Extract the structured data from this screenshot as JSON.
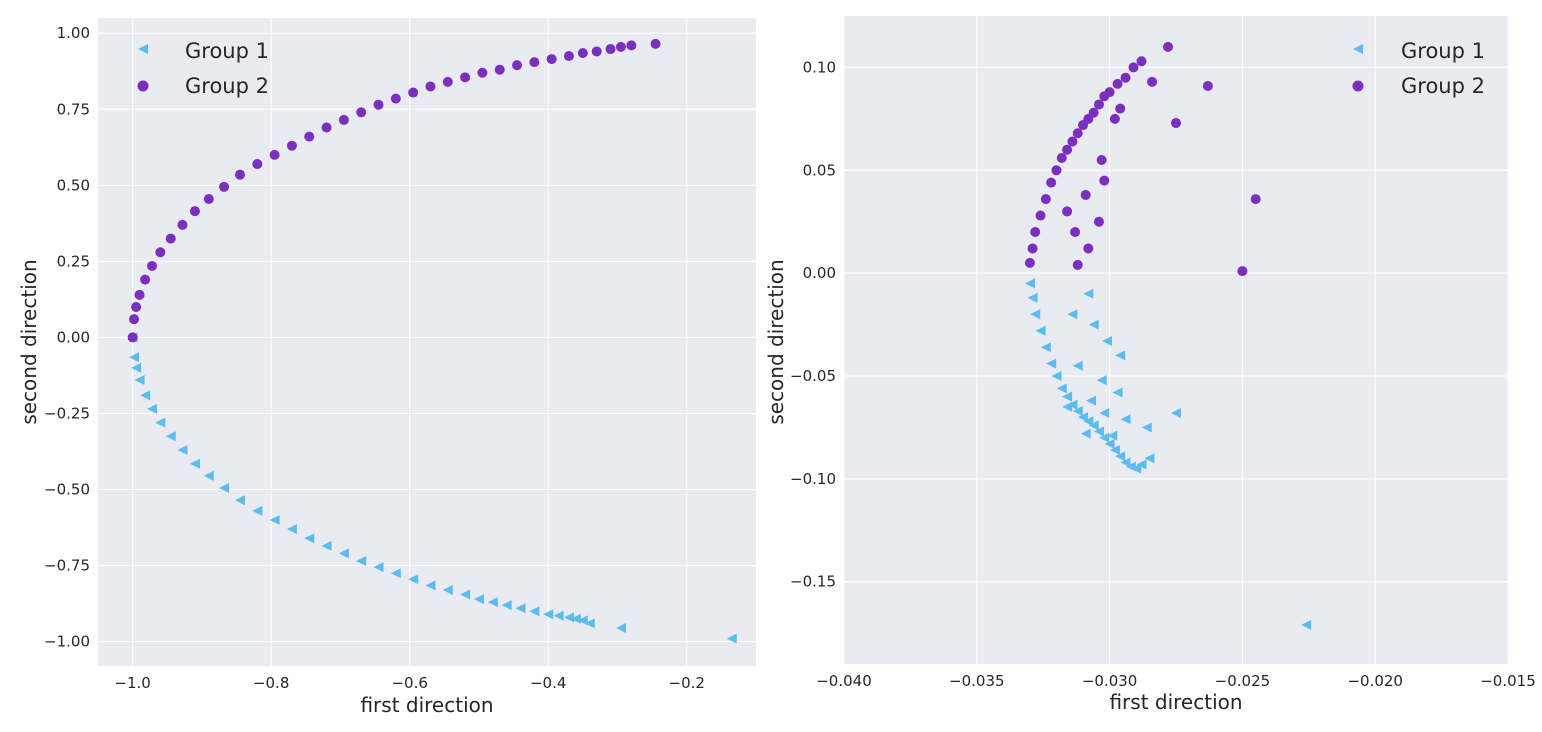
{
  "colors": {
    "group1": "#5bbcf0",
    "group2": "#7b2fbf",
    "plot_bg": "#eaeaf2",
    "grid": "#ffffff"
  },
  "chart_data": [
    {
      "type": "scatter",
      "xlabel": "first direction",
      "ylabel": "second direction",
      "xlim": [
        -1.05,
        -0.1
      ],
      "ylim": [
        -1.08,
        1.05
      ],
      "xticks": [
        -1.0,
        -0.8,
        -0.6,
        -0.4,
        -0.2
      ],
      "xtick_labels": [
        "−1.0",
        "−0.8",
        "−0.6",
        "−0.4",
        "−0.2"
      ],
      "yticks": [
        1.0,
        0.75,
        0.5,
        0.25,
        0.0,
        -0.25,
        -0.5,
        -0.75,
        -1.0
      ],
      "ytick_labels": [
        "1.00",
        "0.75",
        "0.50",
        "0.25",
        "0.00",
        "−0.25",
        "−0.50",
        "−0.75",
        "−1.00"
      ],
      "grid": true,
      "legend": "top-left",
      "series": [
        {
          "name": "Group 1",
          "marker": "triangle-left",
          "color": "#5bbcf0",
          "x": [
            -1.0,
            -0.998,
            -0.995,
            -0.99,
            -0.982,
            -0.972,
            -0.96,
            -0.945,
            -0.928,
            -0.91,
            -0.89,
            -0.868,
            -0.845,
            -0.82,
            -0.795,
            -0.77,
            -0.745,
            -0.72,
            -0.695,
            -0.67,
            -0.645,
            -0.62,
            -0.595,
            -0.57,
            -0.545,
            -0.52,
            -0.5,
            -0.48,
            -0.46,
            -0.44,
            -0.42,
            -0.4,
            -0.385,
            -0.37,
            -0.36,
            -0.35,
            -0.34,
            -0.295,
            -0.135
          ],
          "y": [
            -0.0,
            -0.065,
            -0.1,
            -0.14,
            -0.19,
            -0.235,
            -0.28,
            -0.325,
            -0.37,
            -0.415,
            -0.455,
            -0.495,
            -0.535,
            -0.57,
            -0.6,
            -0.63,
            -0.66,
            -0.685,
            -0.71,
            -0.735,
            -0.755,
            -0.775,
            -0.795,
            -0.815,
            -0.83,
            -0.845,
            -0.86,
            -0.87,
            -0.88,
            -0.89,
            -0.9,
            -0.91,
            -0.915,
            -0.92,
            -0.925,
            -0.93,
            -0.94,
            -0.955,
            -0.99
          ]
        },
        {
          "name": "Group 2",
          "marker": "circle",
          "color": "#7b2fbf",
          "x": [
            -1.0,
            -0.998,
            -0.995,
            -0.99,
            -0.982,
            -0.972,
            -0.96,
            -0.945,
            -0.928,
            -0.91,
            -0.89,
            -0.868,
            -0.845,
            -0.82,
            -0.795,
            -0.77,
            -0.745,
            -0.72,
            -0.695,
            -0.67,
            -0.645,
            -0.62,
            -0.595,
            -0.57,
            -0.545,
            -0.52,
            -0.495,
            -0.47,
            -0.445,
            -0.42,
            -0.395,
            -0.37,
            -0.35,
            -0.33,
            -0.31,
            -0.295,
            -0.28,
            -0.245
          ],
          "y": [
            0.0,
            0.06,
            0.1,
            0.14,
            0.19,
            0.235,
            0.28,
            0.325,
            0.37,
            0.415,
            0.455,
            0.495,
            0.535,
            0.57,
            0.6,
            0.63,
            0.66,
            0.69,
            0.715,
            0.74,
            0.765,
            0.785,
            0.805,
            0.825,
            0.84,
            0.855,
            0.87,
            0.88,
            0.895,
            0.905,
            0.915,
            0.925,
            0.935,
            0.94,
            0.948,
            0.955,
            0.96,
            0.965
          ]
        }
      ]
    },
    {
      "type": "scatter",
      "xlabel": "first direction",
      "ylabel": "second direction",
      "xlim": [
        -0.04,
        -0.015
      ],
      "ylim": [
        -0.19,
        0.125
      ],
      "xticks": [
        -0.04,
        -0.035,
        -0.03,
        -0.025,
        -0.02,
        -0.015
      ],
      "xtick_labels": [
        "−0.040",
        "−0.035",
        "−0.030",
        "−0.025",
        "−0.020",
        "−0.015"
      ],
      "yticks": [
        0.1,
        0.05,
        0.0,
        -0.05,
        -0.1,
        -0.15
      ],
      "ytick_labels": [
        "0.10",
        "0.05",
        "0.00",
        "−0.05",
        "−0.10",
        "−0.15"
      ],
      "grid": true,
      "legend": "top-right",
      "series": [
        {
          "name": "Group 1",
          "marker": "triangle-left",
          "color": "#5bbcf0",
          "x": [
            -0.033,
            -0.0329,
            -0.0328,
            -0.0326,
            -0.0324,
            -0.0322,
            -0.032,
            -0.0318,
            -0.0316,
            -0.0314,
            -0.0312,
            -0.031,
            -0.0308,
            -0.0306,
            -0.0304,
            -0.0302,
            -0.03,
            -0.0298,
            -0.0296,
            -0.0294,
            -0.0292,
            -0.029,
            -0.0288,
            -0.0285,
            -0.0308,
            -0.0314,
            -0.0306,
            -0.0301,
            -0.0296,
            -0.0312,
            -0.0303,
            -0.0297,
            -0.0307,
            -0.0316,
            -0.0302,
            -0.0294,
            -0.0286,
            -0.0309,
            -0.0299,
            -0.0275,
            -0.0226
          ],
          "y": [
            -0.005,
            -0.012,
            -0.02,
            -0.028,
            -0.036,
            -0.044,
            -0.05,
            -0.056,
            -0.06,
            -0.064,
            -0.067,
            -0.07,
            -0.072,
            -0.074,
            -0.077,
            -0.08,
            -0.083,
            -0.086,
            -0.089,
            -0.092,
            -0.094,
            -0.095,
            -0.093,
            -0.09,
            -0.01,
            -0.02,
            -0.025,
            -0.033,
            -0.04,
            -0.045,
            -0.052,
            -0.058,
            -0.062,
            -0.065,
            -0.068,
            -0.071,
            -0.075,
            -0.078,
            -0.079,
            -0.068,
            -0.171
          ]
        },
        {
          "name": "Group 2",
          "marker": "circle",
          "color": "#7b2fbf",
          "x": [
            -0.033,
            -0.0329,
            -0.0328,
            -0.0326,
            -0.0324,
            -0.0322,
            -0.032,
            -0.0318,
            -0.0316,
            -0.0314,
            -0.0312,
            -0.031,
            -0.0308,
            -0.0306,
            -0.0304,
            -0.0302,
            -0.03,
            -0.0297,
            -0.0294,
            -0.0291,
            -0.0288,
            -0.0284,
            -0.0278,
            -0.0275,
            -0.0263,
            -0.0245,
            -0.025,
            -0.0312,
            -0.0308,
            -0.0304,
            -0.0313,
            -0.0298,
            -0.0302,
            -0.0309,
            -0.0316,
            -0.0303,
            -0.0296
          ],
          "y": [
            0.005,
            0.012,
            0.02,
            0.028,
            0.036,
            0.044,
            0.05,
            0.056,
            0.06,
            0.064,
            0.068,
            0.072,
            0.075,
            0.078,
            0.082,
            0.086,
            0.088,
            0.092,
            0.095,
            0.1,
            0.103,
            0.093,
            0.11,
            0.073,
            0.091,
            0.036,
            0.001,
            0.004,
            0.012,
            0.025,
            0.02,
            0.075,
            0.045,
            0.038,
            0.03,
            0.055,
            0.08
          ]
        }
      ]
    }
  ]
}
